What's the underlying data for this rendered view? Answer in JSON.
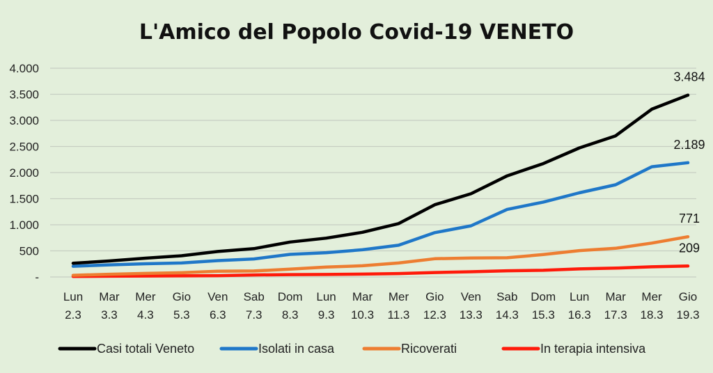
{
  "chart_data": {
    "type": "line",
    "title": "L'Amico del Popolo Covid-19 VENETO",
    "categories": [
      [
        "Lun",
        "2.3"
      ],
      [
        "Mar",
        "3.3"
      ],
      [
        "Mer",
        "4.3"
      ],
      [
        "Gio",
        "5.3"
      ],
      [
        "Ven",
        "6.3"
      ],
      [
        "Sab",
        "7.3"
      ],
      [
        "Dom",
        "8.3"
      ],
      [
        "Lun",
        "9.3"
      ],
      [
        "Mar",
        "10.3"
      ],
      [
        "Mer",
        "11.3"
      ],
      [
        "Gio",
        "12.3"
      ],
      [
        "Ven",
        "13.3"
      ],
      [
        "Sab",
        "14.3"
      ],
      [
        "Dom",
        "15.3"
      ],
      [
        "Lun",
        "16.3"
      ],
      [
        "Mar",
        "17.3"
      ],
      [
        "Mer",
        "18.3"
      ],
      [
        "Gio",
        "19.3"
      ]
    ],
    "ylim": [
      0,
      4000
    ],
    "yticks": [
      0,
      500,
      1000,
      1500,
      2000,
      2500,
      3000,
      3500,
      4000
    ],
    "ytick_labels": [
      "-",
      "500",
      "1.000",
      "1.500",
      "2.000",
      "2.500",
      "3.000",
      "3.500",
      "4.000"
    ],
    "grid": true,
    "legend_position": "bottom",
    "series": [
      {
        "name": "Casi totali Veneto",
        "color": "#000000",
        "values": [
          263,
          307,
          360,
          407,
          488,
          543,
          670,
          744,
          856,
          1023,
          1384,
          1595,
          1937,
          2172,
          2473,
          2704,
          3214,
          3484
        ],
        "end_label": "3.484"
      },
      {
        "name": "Isolati in casa",
        "color": "#1f77c8",
        "values": [
          205,
          232,
          253,
          268,
          313,
          345,
          433,
          466,
          521,
          608,
          849,
          980,
          1295,
          1434,
          1613,
          1767,
          2112,
          2189
        ],
        "end_label": "2.189"
      },
      {
        "name": "Ricoverati",
        "color": "#ed7d31",
        "values": [
          32,
          52,
          68,
          82,
          110,
          115,
          150,
          190,
          215,
          268,
          350,
          364,
          368,
          430,
          505,
          550,
          650,
          771
        ],
        "end_label": "771"
      },
      {
        "name": "In terapia intensiva",
        "color": "#ff1a0a",
        "values": [
          10,
          15,
          19,
          22,
          25,
          38,
          45,
          48,
          55,
          65,
          85,
          100,
          118,
          128,
          155,
          170,
          195,
          209
        ],
        "end_label": "209"
      }
    ]
  }
}
